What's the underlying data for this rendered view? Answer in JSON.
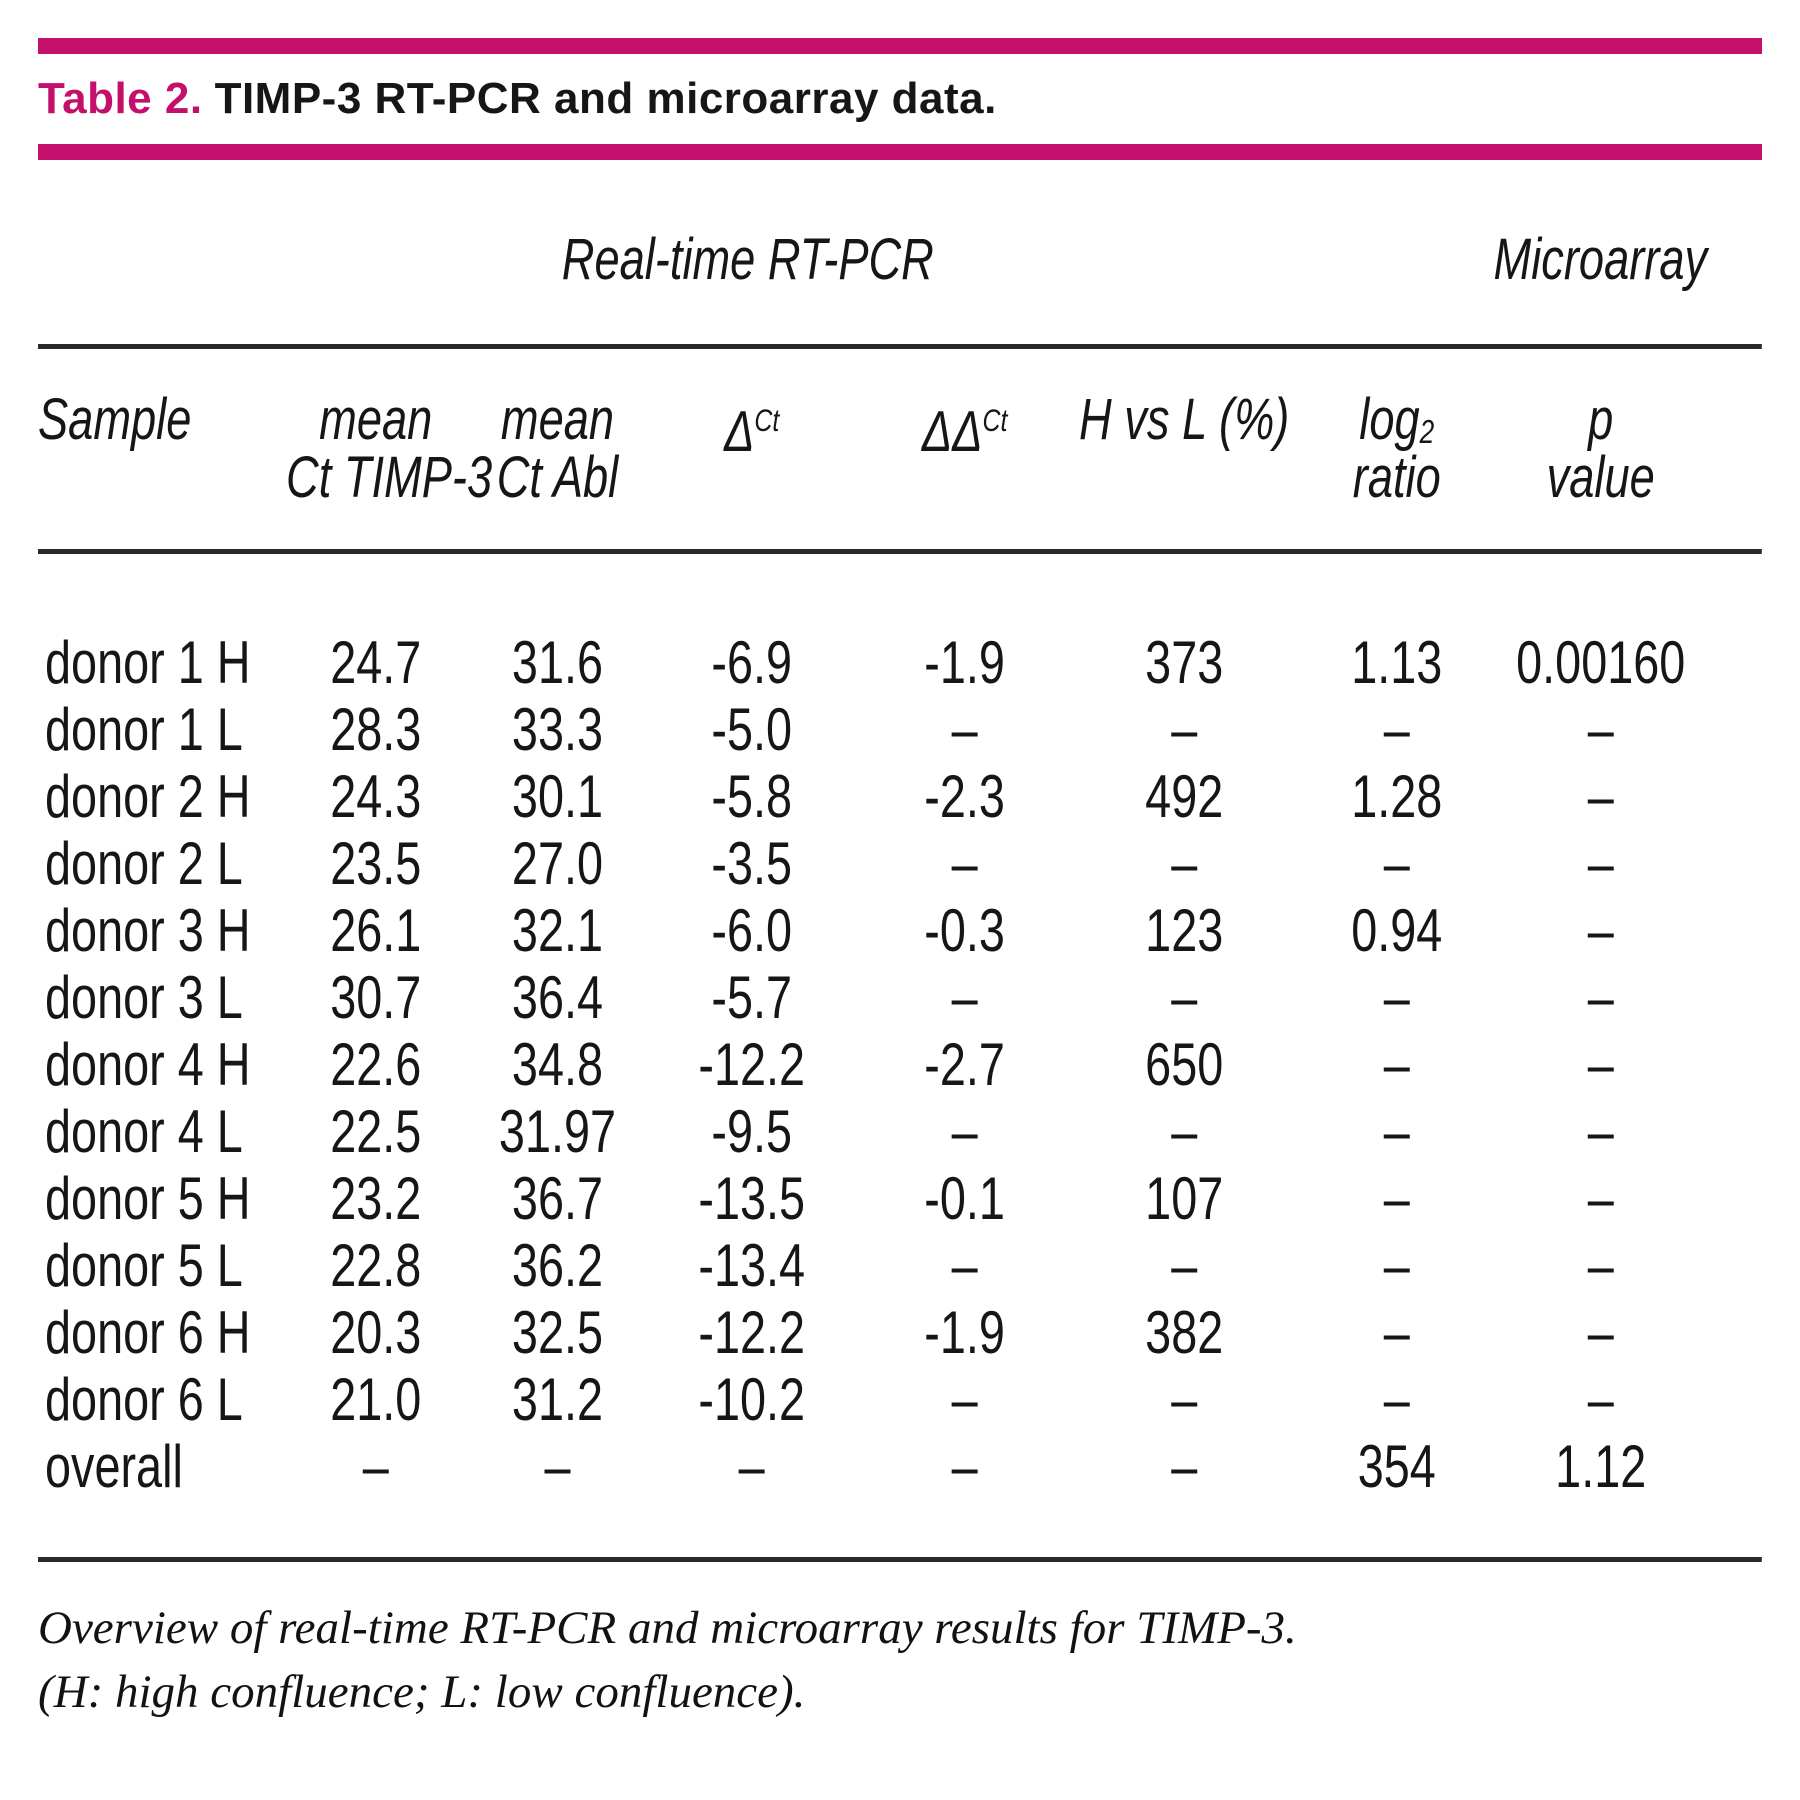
{
  "title": {
    "label": "Table 2.",
    "text": "TIMP-3 RT-PCR and microarray data."
  },
  "table": {
    "group_headers": [
      {
        "id": "real-time-rt-pcr",
        "label": "Real-time RT-PCR"
      },
      {
        "id": "microarray",
        "label": "Microarray"
      }
    ],
    "columns": [
      {
        "id": "sample",
        "line1": "Sample",
        "line2": ""
      },
      {
        "id": "mean-ct-timp3",
        "line1": "mean",
        "line2": "Ct TIMP-3"
      },
      {
        "id": "mean-ct-abl",
        "line1": "mean",
        "line2": "Ct Abl"
      },
      {
        "id": "delta-ct",
        "line1": "Δ",
        "sup": "Ct",
        "line2": ""
      },
      {
        "id": "delta-delta-ct",
        "line1": "ΔΔ",
        "sup": "Ct",
        "line2": ""
      },
      {
        "id": "h-vs-l",
        "line1": "H vs L (%)",
        "line2": ""
      },
      {
        "id": "log2-ratio",
        "line1": "log",
        "sub": "2",
        "line2": "ratio"
      },
      {
        "id": "p-value",
        "line1": "p",
        "line2": "value"
      }
    ],
    "rows": [
      [
        "donor 1 H",
        "24.7",
        "31.6",
        "-6.9",
        "-1.9",
        "373",
        "1.13",
        "0.00160"
      ],
      [
        "donor 1 L",
        "28.3",
        "33.3",
        "-5.0",
        "–",
        "–",
        "–",
        "–"
      ],
      [
        "donor 2 H",
        "24.3",
        "30.1",
        "-5.8",
        "-2.3",
        "492",
        "1.28",
        "–"
      ],
      [
        "donor 2 L",
        "23.5",
        "27.0",
        "-3.5",
        "–",
        "–",
        "–",
        "–"
      ],
      [
        "donor 3 H",
        "26.1",
        "32.1",
        "-6.0",
        "-0.3",
        "123",
        "0.94",
        "–"
      ],
      [
        "donor 3 L",
        "30.7",
        "36.4",
        "-5.7",
        "–",
        "–",
        "–",
        "–"
      ],
      [
        "donor 4 H",
        "22.6",
        "34.8",
        "-12.2",
        "-2.7",
        "650",
        "–",
        "–"
      ],
      [
        "donor 4 L",
        "22.5",
        "31.97",
        "-9.5",
        "–",
        "–",
        "–",
        "–"
      ],
      [
        "donor 5 H",
        "23.2",
        "36.7",
        "-13.5",
        "-0.1",
        "107",
        "–",
        "–"
      ],
      [
        "donor 5 L",
        "22.8",
        "36.2",
        "-13.4",
        "–",
        "–",
        "–",
        "–"
      ],
      [
        "donor 6 H",
        "20.3",
        "32.5",
        "-12.2",
        "-1.9",
        "382",
        "–",
        "–"
      ],
      [
        "donor 6 L",
        "21.0",
        "31.2",
        "-10.2",
        "–",
        "–",
        "–",
        "–"
      ],
      [
        "overall",
        "–",
        "–",
        "–",
        "–",
        "–",
        "354",
        "1.12"
      ]
    ]
  },
  "footnote": {
    "line1": "Overview of real-time RT-PCR and microarray results for TIMP-3.",
    "line2": "(H: high confluence; L: low confluence)."
  },
  "colors": {
    "accent_magenta": "#C40F6C",
    "rule_black": "#2a2a2a",
    "text": "#161616"
  }
}
